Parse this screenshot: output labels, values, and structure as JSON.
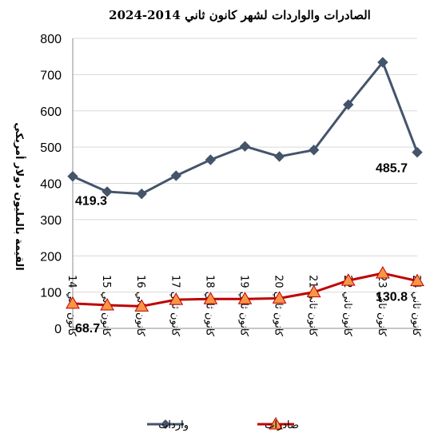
{
  "chart_data": {
    "type": "line",
    "title": "الصادرات والواردات لشهر كانون ثاني 2014-2024",
    "ylabel": "القيمة بالمليون دولار أمريكي",
    "xlabel": "",
    "ylim": [
      0,
      800
    ],
    "yticks": [
      0,
      100,
      200,
      300,
      400,
      500,
      600,
      700,
      800
    ],
    "categories": [
      "كانون ثاني 14",
      "كانون ثاني 15",
      "كانون ثاني 16",
      "كانون ثاني 17",
      "كانون ثاني 18",
      "كانون ثاني 19",
      "كانون ثاني 20",
      "كانون ثاني 21",
      "كانون ثاني 22",
      "كانون ثاني 23",
      "كانون ثاني 24"
    ],
    "series": [
      {
        "name": "واردات",
        "color": "#44546a",
        "marker": "diamond",
        "values": [
          419.3,
          377,
          371,
          421,
          465,
          502,
          474,
          492,
          617,
          734,
          485.7
        ]
      },
      {
        "name": "صادرات",
        "color": "#c00000",
        "marker": "triangle",
        "marker_fill": "#f79646",
        "values": [
          68.7,
          64,
          61,
          79,
          81,
          81,
          83,
          100,
          132,
          152,
          130.8
        ]
      }
    ],
    "data_labels": [
      {
        "series": 0,
        "index": 0,
        "text": "419.3"
      },
      {
        "series": 0,
        "index": 10,
        "text": "485.7"
      },
      {
        "series": 1,
        "index": 0,
        "text": "68.7"
      },
      {
        "series": 1,
        "index": 10,
        "text": "130.8"
      }
    ],
    "grid": true,
    "legend_position": "bottom"
  }
}
